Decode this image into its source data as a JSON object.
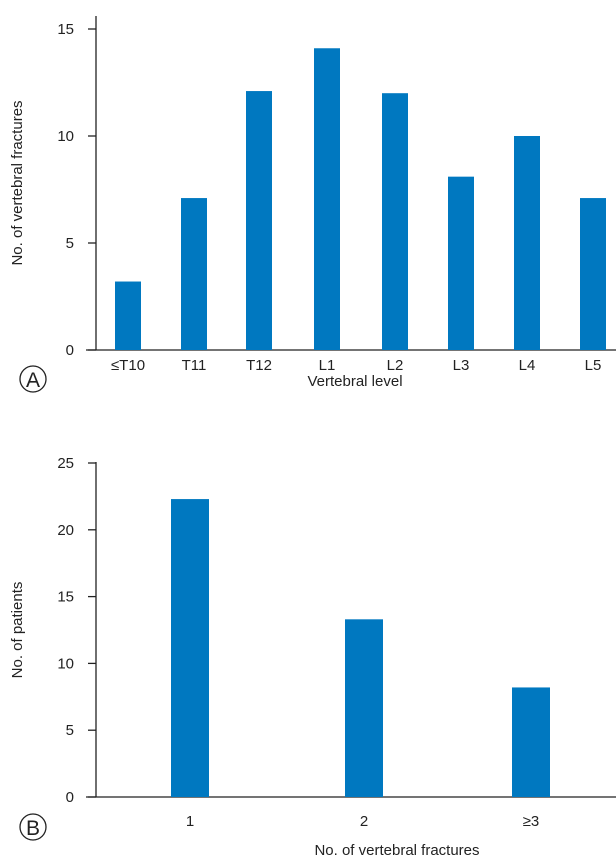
{
  "colors": {
    "bar": "#0078c0",
    "axis": "#222222"
  },
  "chart_data": [
    {
      "panel_label": "A",
      "type": "bar",
      "categories": [
        "≤T10",
        "T11",
        "T12",
        "L1",
        "L2",
        "L3",
        "L4",
        "L5"
      ],
      "values": [
        3.2,
        7.1,
        12.1,
        14.1,
        12.0,
        8.1,
        10.0,
        7.1
      ],
      "xlabel": "Vertebral level",
      "ylabel": "No. of vertebral fractures",
      "ylim": [
        0,
        15
      ],
      "yticks": [
        0,
        5,
        10,
        15
      ],
      "grid": false,
      "legend": "none"
    },
    {
      "panel_label": "B",
      "type": "bar",
      "categories": [
        "1",
        "2",
        "≥3"
      ],
      "values": [
        22.3,
        13.3,
        8.2
      ],
      "xlabel": "No. of vertebral fractures",
      "ylabel": "No. of patients",
      "ylim": [
        0,
        25
      ],
      "yticks": [
        0,
        5,
        10,
        15,
        20,
        25
      ],
      "grid": false,
      "legend": "none"
    }
  ]
}
